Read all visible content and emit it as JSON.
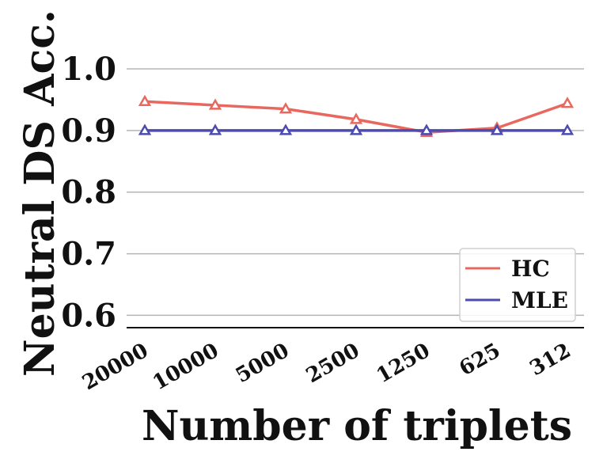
{
  "chart_data": {
    "type": "line",
    "title": "",
    "xlabel": "Number of triplets",
    "ylabel": "Neutral DS Acc.",
    "categories": [
      "20000",
      "10000",
      "5000",
      "2500",
      "1250",
      "625",
      "312"
    ],
    "ylim": [
      0.58,
      1.0
    ],
    "yticks": [
      "1.0",
      "0.9",
      "0.8",
      "0.7",
      "0.6"
    ],
    "ytick_values": [
      1.0,
      0.9,
      0.8,
      0.7,
      0.6
    ],
    "grid": "horizontal",
    "legend_position": "bottom-right",
    "series": [
      {
        "name": "HC",
        "color": "#e8685f",
        "marker": "triangle",
        "values": [
          0.947,
          0.941,
          0.935,
          0.918,
          0.897,
          0.904,
          0.944
        ]
      },
      {
        "name": "MLE",
        "color": "#4b4bb0",
        "marker": "triangle",
        "values": [
          0.9,
          0.9,
          0.9,
          0.9,
          0.9,
          0.9,
          0.9
        ]
      }
    ]
  }
}
